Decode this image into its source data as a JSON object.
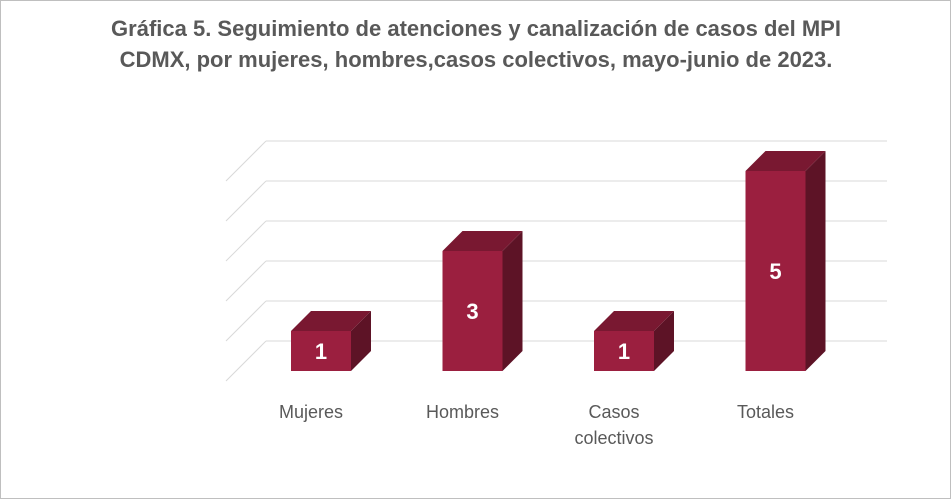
{
  "chart_data": {
    "type": "bar3d",
    "title": "Gráfica 5. Seguimiento de atenciones y canalización de casos del MPI CDMX, por mujeres, hombres,casos colectivos, mayo-junio de 2023.",
    "categories": [
      "Mujeres",
      "Hombres",
      "Casos colectivos",
      "Totales"
    ],
    "values": [
      1,
      3,
      1,
      5
    ],
    "color": "#9b1f3f",
    "ylim": [
      0,
      5
    ],
    "yticks": [
      0,
      1,
      2,
      3,
      4,
      5
    ],
    "grid": true
  }
}
